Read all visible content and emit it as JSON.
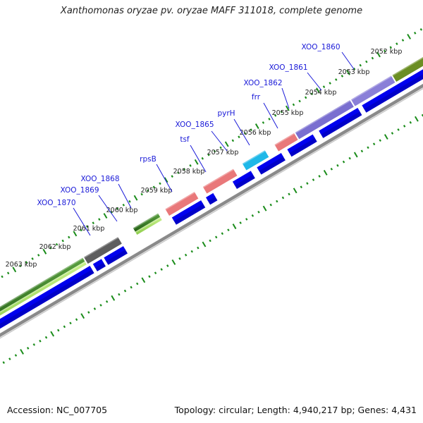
{
  "header": {
    "title": "Xanthomonas oryzae pv. oryzae MAFF 311018, complete genome"
  },
  "footer": {
    "accession": "Accession: NC_007705",
    "summary": "Topology: circular; Length: 4,940,217 bp; Genes: 4,431"
  },
  "map": {
    "kbp_labels": [
      "2052 kbp",
      "2053 kbp",
      "2054 kbp",
      "2055 kbp",
      "2056 kbp",
      "2057 kbp",
      "2058 kbp",
      "2059 kbp",
      "2060 kbp",
      "2061 kbp",
      "2062 kbp",
      "2063 kbp"
    ],
    "genes": [
      {
        "label": "XOO_1860",
        "color": "#7a6fd0"
      },
      {
        "label": "XOO_1861",
        "color": "#7a6fd0"
      },
      {
        "label": "XOO_1862",
        "color": "#e9787a"
      },
      {
        "label": "frr",
        "color": "#e9787a"
      },
      {
        "label": "pyrH",
        "color": "#1fb8e8"
      },
      {
        "label": "XOO_1865",
        "color": "#e9787a"
      },
      {
        "label": "tsf",
        "color": "#e9787a"
      },
      {
        "label": "rpsB",
        "color": "#e9787a"
      },
      {
        "label": "XOO_1868",
        "color": "#3f8f1f"
      },
      {
        "label": "XOO_1869",
        "color": "#b2e84a"
      },
      {
        "label": "XOO_1870",
        "color": "#5a5a5a"
      }
    ],
    "colors": {
      "cds": "#0000ee",
      "backbone": "#8a8a8a",
      "ticks": "#1a8c1a",
      "label": "#1a1ad8",
      "leader": "#1a1ad8",
      "olive": "#6b8e23",
      "dark_green": "#2e7d1e",
      "light_green": "#a6e06a"
    }
  }
}
